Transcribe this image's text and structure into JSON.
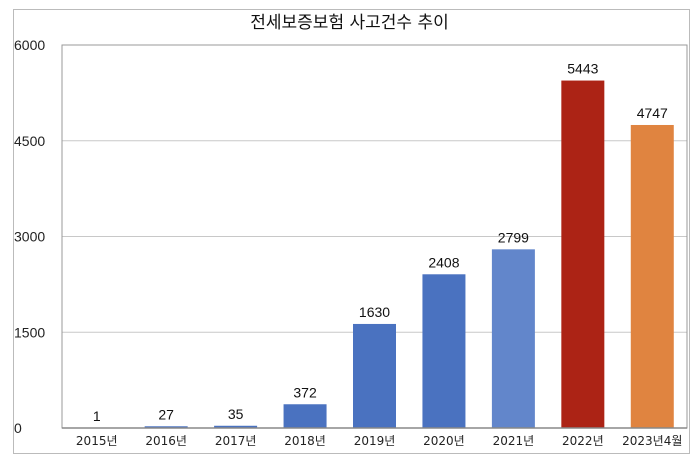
{
  "chart_data": {
    "type": "bar",
    "title": "전세보증보험 사고건수 추이",
    "xlabel": "",
    "ylabel": "",
    "ylim": [
      0,
      6000
    ],
    "yticks": [
      0,
      1500,
      3000,
      4500,
      6000
    ],
    "grid": true,
    "categories": [
      "2015년",
      "2016년",
      "2017년",
      "2018년",
      "2019년",
      "2020년",
      "2021년",
      "2022년",
      "2023년4월"
    ],
    "values": [
      1,
      27,
      35,
      372,
      1630,
      2408,
      2799,
      5443,
      4747
    ],
    "colors": [
      "#4a72c0",
      "#4a72c0",
      "#4a72c0",
      "#4a72c0",
      "#4a72c0",
      "#4a72c0",
      "#6286cb",
      "#ac2315",
      "#e08440"
    ],
    "legend": "none"
  }
}
